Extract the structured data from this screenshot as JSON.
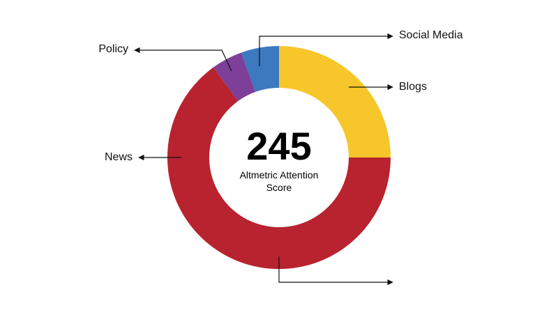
{
  "chart_data": {
    "type": "donut",
    "categories": [
      "Blogs",
      "News",
      "Policy",
      "Social Media"
    ],
    "values": [
      25,
      65,
      4.5,
      5.5
    ],
    "colors": [
      "#f7c62a",
      "#b8232f",
      "#7d3f98",
      "#3c79bf"
    ],
    "center_value": "245",
    "center_label": "Altmetric Attention Score"
  }
}
